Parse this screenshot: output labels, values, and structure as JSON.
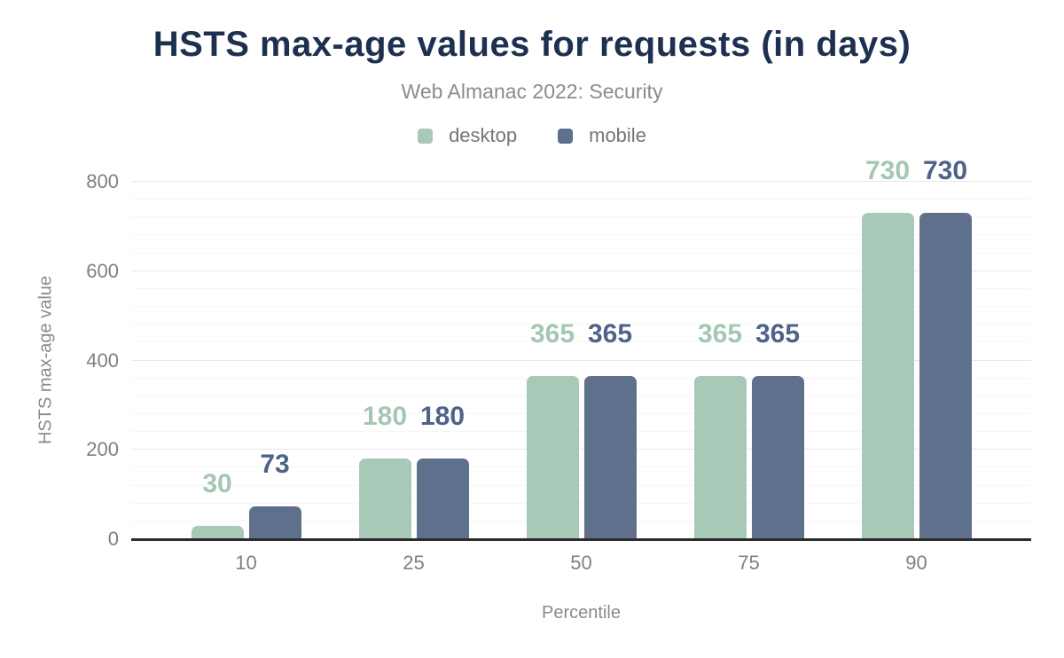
{
  "chart": {
    "title": "HSTS max-age values for requests (in days)",
    "subtitle": "Web Almanac 2022: Security",
    "x_axis_title": "Percentile",
    "y_axis_title": "HSTS max-age value"
  },
  "legend": {
    "items": [
      {
        "label": "desktop",
        "color": "#a8c9b8"
      },
      {
        "label": "mobile",
        "color": "#5f708c"
      }
    ]
  },
  "chart_data": {
    "type": "bar",
    "title": "HSTS max-age values for requests (in days)",
    "subtitle": "Web Almanac 2022: Security",
    "xlabel": "Percentile",
    "ylabel": "HSTS max-age value",
    "categories": [
      "10",
      "25",
      "50",
      "75",
      "90"
    ],
    "series": [
      {
        "name": "desktop",
        "color": "#a8c9b8",
        "label_color": "#a3c7b3",
        "values": [
          30,
          180,
          365,
          365,
          730
        ]
      },
      {
        "name": "mobile",
        "color": "#5f708c",
        "label_color": "#4e6387",
        "values": [
          73,
          180,
          365,
          365,
          730
        ]
      }
    ],
    "ylim": [
      0,
      800
    ],
    "yticks": [
      "0",
      "200",
      "400",
      "600",
      "800"
    ],
    "ytick_values": [
      0,
      200,
      400,
      600,
      800
    ],
    "minor_gridline_step": 40,
    "major_gridline_step": 200,
    "grid": "on",
    "legend_position": "top",
    "bar_labels_shown": true
  },
  "colors": {
    "background": "#ffffff",
    "title": "#1e3050",
    "subtitle": "#8b8b8b",
    "legend_text": "#757575",
    "tick_text": "#808080",
    "axis_title_text": "#8a8a8a",
    "axis_line": "#2d2d2d",
    "major_gridline": "#e7e7e7",
    "minor_gridline": "#f6f6f6",
    "desktop": "#a8c9b8",
    "mobile": "#5f708c"
  }
}
